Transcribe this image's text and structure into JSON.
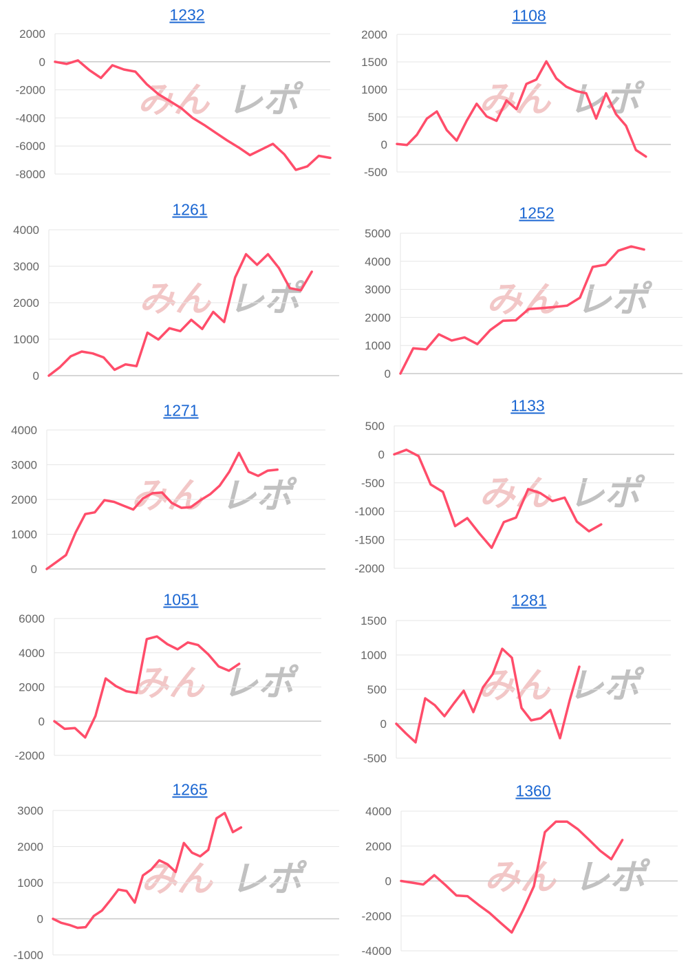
{
  "watermark": {
    "part1": "みん",
    "part2": "レポ",
    "colors": [
      "#e89a9a",
      "#999999"
    ]
  },
  "line_color": "#ff4d6a",
  "title_color": "#1a66d2",
  "chart_data": [
    {
      "type": "line",
      "title": "1232",
      "xlim": [
        0,
        24
      ],
      "ylim": [
        -8000,
        2000
      ],
      "yticks": [
        "2000",
        "0",
        "-2000",
        "-4000",
        "-6000",
        "-8000"
      ],
      "grid": true,
      "values": [
        0,
        -150,
        100,
        -600,
        -1150,
        -250,
        -550,
        -700,
        -1600,
        -2300,
        -2800,
        -3300,
        -4000,
        -4500,
        -5050,
        -5600,
        -6100,
        -6650,
        -6250,
        -5850,
        -6600,
        -7700,
        -7450,
        -6700,
        -6850
      ]
    },
    {
      "type": "line",
      "title": "1108",
      "xlim": [
        0,
        27.5
      ],
      "ylim": [
        -500,
        2000
      ],
      "yticks": [
        "2000",
        "1500",
        "1000",
        "500",
        "0",
        "-500"
      ],
      "grid": true,
      "values": [
        10,
        -10,
        175,
        470,
        600,
        260,
        70,
        430,
        740,
        510,
        430,
        800,
        640,
        1100,
        1180,
        1510,
        1200,
        1050,
        970,
        930,
        470,
        930,
        550,
        340,
        -100,
        -220
      ]
    },
    {
      "type": "line",
      "title": "1261",
      "xlim": [
        0,
        26.5
      ],
      "ylim": [
        0,
        4000
      ],
      "yticks": [
        "4000",
        "3000",
        "2000",
        "1000",
        "0"
      ],
      "grid": true,
      "values": [
        0,
        230,
        530,
        660,
        610,
        500,
        160,
        310,
        260,
        1180,
        990,
        1300,
        1220,
        1530,
        1280,
        1750,
        1470,
        2690,
        3330,
        3040,
        3330,
        2950,
        2400,
        2340,
        2850
      ]
    },
    {
      "type": "line",
      "title": "1252",
      "xlim": [
        0,
        22
      ],
      "ylim": [
        0,
        5000
      ],
      "yticks": [
        "5000",
        "4000",
        "3000",
        "2000",
        "1000",
        "0"
      ],
      "grid": true,
      "values": [
        0,
        900,
        860,
        1400,
        1180,
        1290,
        1050,
        1550,
        1880,
        1900,
        2300,
        2330,
        2370,
        2420,
        2700,
        3800,
        3880,
        4380,
        4530,
        4420
      ]
    },
    {
      "type": "line",
      "title": "1271",
      "xlim": [
        0,
        29
      ],
      "ylim": [
        0,
        4000
      ],
      "yticks": [
        "4000",
        "3000",
        "2000",
        "1000",
        "0"
      ],
      "grid": true,
      "values": [
        0,
        200,
        400,
        1050,
        1580,
        1630,
        1980,
        1930,
        1820,
        1710,
        2030,
        2180,
        2200,
        1900,
        1760,
        1780,
        1980,
        2150,
        2400,
        2800,
        3340,
        2800,
        2680,
        2830,
        2860
      ]
    },
    {
      "type": "line",
      "title": "1133",
      "xlim": [
        0,
        23
      ],
      "ylim": [
        -2000,
        500
      ],
      "yticks": [
        "500",
        "0",
        "-500",
        "-1000",
        "-1500",
        "-2000"
      ],
      "grid": true,
      "values": [
        0,
        80,
        -30,
        -530,
        -660,
        -1260,
        -1120,
        -1390,
        -1640,
        -1190,
        -1110,
        -610,
        -680,
        -820,
        -760,
        -1180,
        -1350,
        -1230
      ]
    },
    {
      "type": "line",
      "title": "1051",
      "xlim": [
        0,
        26
      ],
      "ylim": [
        -2000,
        6000
      ],
      "yticks": [
        "6000",
        "4000",
        "2000",
        "0",
        "-2000"
      ],
      "grid": true,
      "values": [
        0,
        -450,
        -400,
        -950,
        300,
        2500,
        2050,
        1750,
        1650,
        4800,
        4950,
        4500,
        4200,
        4600,
        4450,
        3900,
        3200,
        2950,
        3350
      ]
    },
    {
      "type": "line",
      "title": "1281",
      "xlim": [
        0,
        28.5
      ],
      "ylim": [
        -500,
        1500
      ],
      "yticks": [
        "1500",
        "1000",
        "500",
        "0",
        "-500"
      ],
      "grid": true,
      "values": [
        0,
        -140,
        -270,
        370,
        270,
        110,
        300,
        480,
        170,
        530,
        720,
        1090,
        960,
        230,
        50,
        80,
        200,
        -210,
        340,
        830
      ]
    },
    {
      "type": "line",
      "title": "1265",
      "xlim": [
        0,
        35
      ],
      "ylim": [
        -1000,
        3000
      ],
      "yticks": [
        "3000",
        "2000",
        "1000",
        "0",
        "-1000"
      ],
      "grid": true,
      "values": [
        0,
        -110,
        -170,
        -250,
        -230,
        80,
        230,
        510,
        810,
        770,
        450,
        1200,
        1360,
        1620,
        1510,
        1300,
        2100,
        1830,
        1730,
        1910,
        2780,
        2930,
        2400,
        2530
      ]
    },
    {
      "type": "line",
      "title": "1360",
      "xlim": [
        0,
        25
      ],
      "ylim": [
        -4000,
        4000
      ],
      "yticks": [
        "4000",
        "2000",
        "0",
        "-2000",
        "-4000"
      ],
      "grid": true,
      "values": [
        0,
        -100,
        -200,
        330,
        -230,
        -830,
        -870,
        -1370,
        -1830,
        -2400,
        -2950,
        -1700,
        -300,
        2800,
        3400,
        3400,
        2950,
        2350,
        1730,
        1250,
        2350
      ]
    }
  ]
}
